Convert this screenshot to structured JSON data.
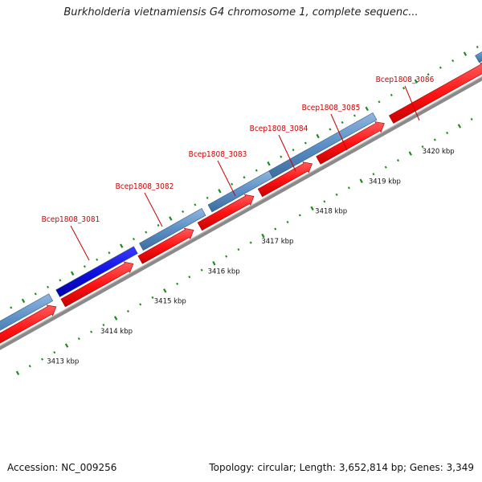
{
  "header": {
    "title": "Burkholderia vietnamiensis G4 chromosome 1, complete sequenc..."
  },
  "footer": {
    "accession": "Accession: NC_009256",
    "summary": "Topology: circular; Length: 3,652,814 bp; Genes: 3,349"
  },
  "colors": {
    "cds_forward": "#ff1a1a",
    "gene_feature": "#5b8fc6",
    "highlighted_gene": "#1010e0",
    "backbone": "#8a8a8a",
    "tick_marks": "#1a8c1a",
    "gene_label": "#cc0000"
  },
  "gene_labels": [
    {
      "text": "Bcep1808_3081",
      "highlighted": true
    },
    {
      "text": "Bcep1808_3082",
      "highlighted": false
    },
    {
      "text": "Bcep1808_3083",
      "highlighted": false
    },
    {
      "text": "Bcep1808_3084",
      "highlighted": false
    },
    {
      "text": "Bcep1808_3085",
      "highlighted": false
    },
    {
      "text": "Bcep1808_3086",
      "highlighted": false
    }
  ],
  "ruler_labels": [
    "3413 kbp",
    "3414 kbp",
    "3415 kbp",
    "3416 kbp",
    "3417 kbp",
    "3418 kbp",
    "3419 kbp",
    "3420 kbp"
  ]
}
